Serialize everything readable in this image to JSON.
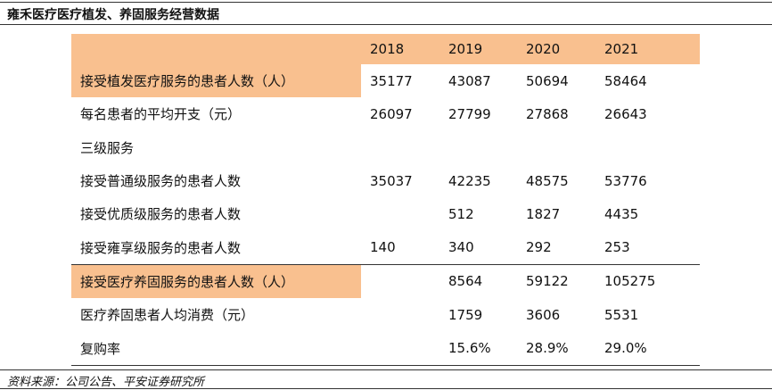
{
  "title": "雍禾医疗医疗植发、养固服务经营数据",
  "table": {
    "header": [
      "2018",
      "2019",
      "2020",
      "2021"
    ],
    "rows": [
      [
        "接受植发医疗服务的患者人数（人）",
        35177,
        43087,
        50694,
        58464
      ],
      [
        "每名患者的平均开支（元）",
        26097,
        27799,
        27868,
        26643
      ],
      [
        "三级服务",
        null,
        null,
        null,
        null
      ],
      [
        "接受普通级服务的患者人数",
        35037,
        42235,
        48575,
        53776
      ],
      [
        "接受优质级服务的患者人数",
        null,
        512,
        1827,
        4435
      ],
      [
        "接受雍享级服务的患者人数",
        140,
        340,
        292,
        253
      ],
      [
        "接受医疗养固服务的患者人数（人）",
        null,
        8564,
        59122,
        105275
      ],
      [
        "医疗养固患者人均消费（元）",
        null,
        1759,
        3606,
        5531
      ],
      [
        "复购率",
        null,
        "15.6%",
        "28.9%",
        "29.0%"
      ]
    ]
  },
  "source": "资料来源：公司公告、平安证券研究所"
}
